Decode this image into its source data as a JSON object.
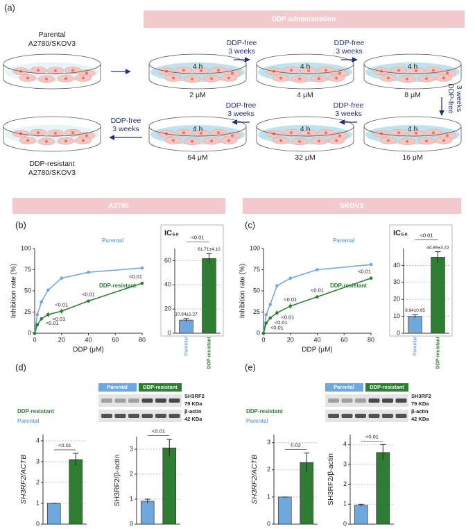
{
  "panel_labels": [
    "(a)",
    "(b)",
    "(c)",
    "(d)",
    "(e)"
  ],
  "cell_lines": [
    "A2780",
    "SKOV3"
  ],
  "schematic": {
    "header": "DDP administration",
    "parental": [
      "Parental",
      "A2780/SKOV3"
    ],
    "resistant": [
      "DDP-resistant",
      "A2780/SKOV3"
    ],
    "exposure": "4 h",
    "doses": [
      "2 μM",
      "4 μM",
      "8 μM",
      "16 μM",
      "32 μM",
      "64 μM"
    ],
    "interval": [
      "DDP-free",
      "3 weeks"
    ]
  },
  "blots": [
    {
      "groups": [
        "Parental",
        "DDP-resistant"
      ],
      "bands": [
        {
          "name": "SH3RF2",
          "size": "79 KDa"
        },
        {
          "name": "β-actin",
          "size": "42 KDa"
        }
      ]
    },
    {
      "groups": [
        "Parental",
        "DDP-resistant"
      ],
      "bands": [
        {
          "name": "SH3RF2",
          "size": "79 KDa"
        },
        {
          "name": "β-actin",
          "size": "42 KDa"
        }
      ]
    }
  ],
  "chart_data": [
    {
      "type": "line",
      "xlabel": "DDP (μM)",
      "ylabel": "Inhibition rate (%)",
      "x": [
        0,
        2,
        5,
        10,
        20,
        40,
        80
      ],
      "series": [
        {
          "name": "Parental",
          "color": "#6fa8dc",
          "values": [
            0,
            22,
            37,
            51,
            65,
            72,
            77
          ]
        },
        {
          "name": "DDP-resistant",
          "color": "#2e7d32",
          "values": [
            0,
            10,
            17,
            22,
            26,
            38,
            59
          ],
          "errors": [
            0,
            1,
            2,
            3,
            3,
            1,
            2
          ]
        }
      ],
      "annotations": [
        {
          "text": "<0.01",
          "x": 5
        },
        {
          "text": "<0.01",
          "x": 10
        },
        {
          "text": "<0.01",
          "x": 20
        },
        {
          "text": "<0.01",
          "x": 40
        },
        {
          "text": "<0.01",
          "x": 80
        }
      ],
      "xlim": [
        0,
        80
      ],
      "xticks": [
        0,
        20,
        40,
        60,
        80
      ],
      "ylim": [
        0,
        100
      ],
      "yticks": [
        0,
        25,
        50,
        75,
        100
      ],
      "grid": false
    },
    {
      "type": "bar",
      "title": "IC₅₀",
      "categories": [
        "Parental",
        "DDP-resistant"
      ],
      "colors": [
        "#6fa8dc",
        "#2e7d32"
      ],
      "values": [
        10.84,
        61.71
      ],
      "errors": [
        1.27,
        4.1
      ],
      "value_labels": [
        "10.84±1.27",
        "61.71±4.10"
      ],
      "comparison": "<0.01",
      "ylim": [
        0,
        70
      ],
      "yticks": [
        0,
        20,
        40,
        60
      ],
      "grid": true
    },
    {
      "type": "line",
      "xlabel": "DDP (μM)",
      "ylabel": "Inhibition rate (%)",
      "x": [
        0,
        2,
        5,
        10,
        20,
        40,
        80
      ],
      "series": [
        {
          "name": "Parental",
          "color": "#6fa8dc",
          "values": [
            0,
            22,
            34,
            56,
            65,
            75,
            81
          ]
        },
        {
          "name": "DDP-resistant",
          "color": "#2e7d32",
          "values": [
            0,
            12,
            18,
            24,
            32,
            43,
            65
          ],
          "errors": [
            0,
            1,
            2,
            3,
            3,
            1,
            1
          ]
        }
      ],
      "annotations": [
        {
          "text": "<0.01",
          "x": 2
        },
        {
          "text": "<0.01",
          "x": 5
        },
        {
          "text": "<0.01",
          "x": 10
        },
        {
          "text": "<0.01",
          "x": 20
        },
        {
          "text": "<0.01",
          "x": 40
        },
        {
          "text": "<0.01",
          "x": 80
        }
      ],
      "xlim": [
        0,
        80
      ],
      "xticks": [
        0,
        20,
        40,
        60,
        80
      ],
      "ylim": [
        0,
        100
      ],
      "yticks": [
        0,
        25,
        50,
        75,
        100
      ],
      "grid": false
    },
    {
      "type": "bar",
      "title": "IC₅₀",
      "categories": [
        "Parental",
        "DDP-resistant"
      ],
      "colors": [
        "#6fa8dc",
        "#2e7d32"
      ],
      "values": [
        9.94,
        44.89
      ],
      "errors": [
        0.95,
        3.22
      ],
      "value_labels": [
        "9.94±0.95",
        "44.89±3.22"
      ],
      "comparison": "<0.01",
      "ylim": [
        0,
        50
      ],
      "yticks": [
        0,
        10,
        20,
        30,
        40
      ],
      "grid": true
    },
    {
      "type": "bar",
      "ylabel": "SH3RF2/ACTB",
      "categories": [
        "Parental",
        "DDP-resistant"
      ],
      "colors": [
        "#6fa8dc",
        "#2e7d32"
      ],
      "legend": "upper left",
      "values": [
        1,
        3.1
      ],
      "errors": [
        0,
        0.3
      ],
      "comparison": "<0.01",
      "ylim": [
        0,
        4.3
      ],
      "yticks": [
        0,
        1,
        2,
        3,
        4
      ],
      "grid": true
    },
    {
      "type": "bar",
      "ylabel": "SH3RF2/β-actin",
      "colors": [
        "#6fa8dc",
        "#2e7d32"
      ],
      "values": [
        0.92,
        3.05
      ],
      "errors": [
        0.08,
        0.35
      ],
      "comparison": "<0.01",
      "ylim": [
        0,
        3.5
      ],
      "yticks": [
        0,
        1,
        2,
        3
      ],
      "grid": true
    },
    {
      "type": "bar",
      "ylabel": "SH3RF2/ACTB",
      "categories": [
        "Parental",
        "DDP-resistant"
      ],
      "colors": [
        "#6fa8dc",
        "#2e7d32"
      ],
      "legend": "upper left",
      "values": [
        1,
        2.27
      ],
      "errors": [
        0,
        0.35
      ],
      "comparison": "0.02",
      "ylim": [
        0,
        3.3
      ],
      "yticks": [
        0,
        1,
        2,
        3
      ],
      "grid": true
    },
    {
      "type": "bar",
      "ylabel": "SH3RF2/β-actin",
      "colors": [
        "#6fa8dc",
        "#2e7d32"
      ],
      "values": [
        0.95,
        3.6
      ],
      "errors": [
        0.05,
        0.4
      ],
      "comparison": "<0.01",
      "ylim": [
        0,
        4.5
      ],
      "yticks": [
        0,
        1,
        2,
        3,
        4
      ],
      "grid": true
    }
  ]
}
